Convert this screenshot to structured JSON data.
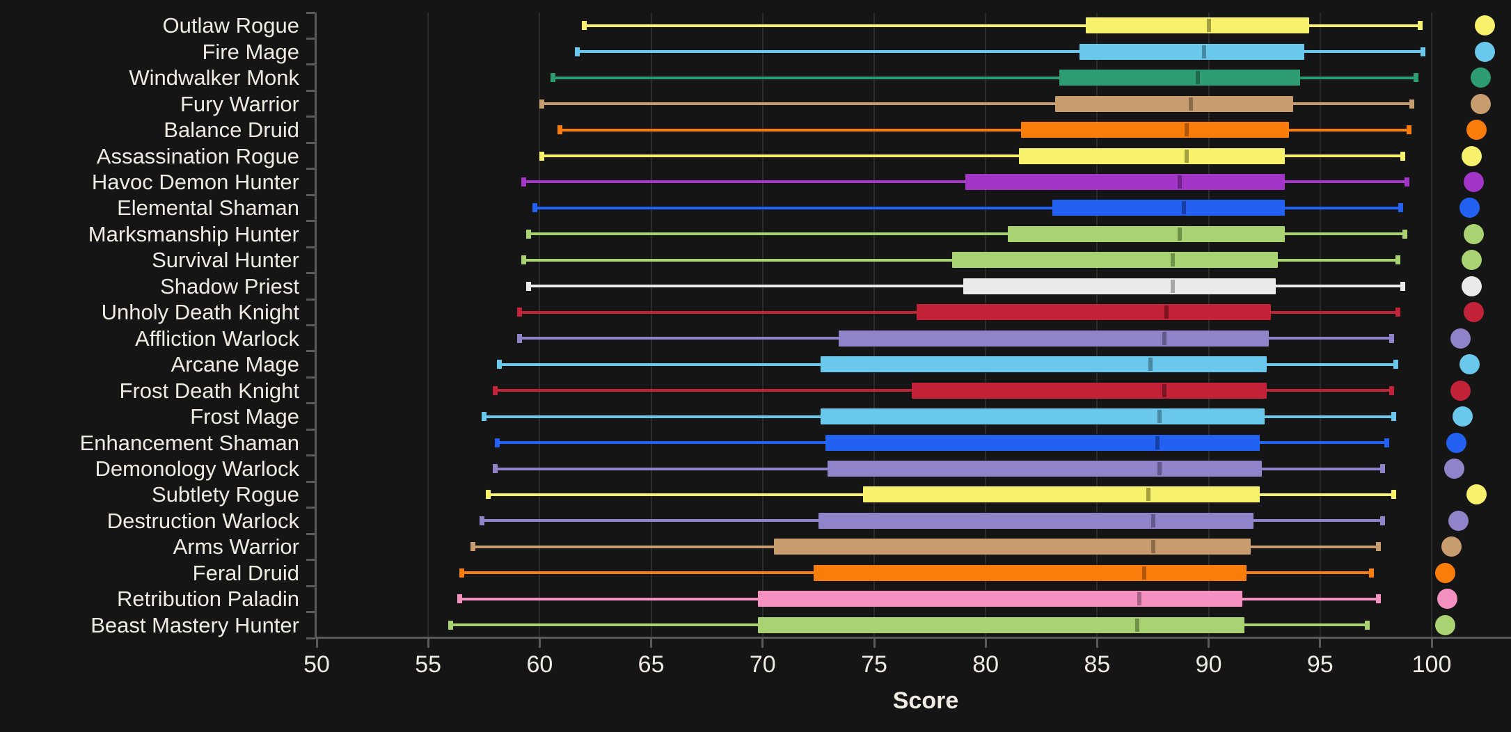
{
  "theme": {
    "background": "#151515",
    "text_color": "#EFEBE2",
    "axis_color": "#5A5A5A",
    "grid_color": "#2C2C2C"
  },
  "chart_data": {
    "type": "box",
    "orientation": "horizontal",
    "title": "",
    "xlabel": "Score",
    "x_ticks": [
      50,
      55,
      60,
      65,
      70,
      75,
      80,
      85,
      90,
      95,
      100
    ],
    "xlim": [
      50,
      103.5
    ],
    "grid": "vertical-only",
    "legend_position": "none",
    "categories": [
      {
        "label": "Outlaw Rogue",
        "color": "#F8F16C",
        "median_color": "#A5A03F",
        "whisker_low": 62.0,
        "q1": 84.5,
        "median": 90.0,
        "q3": 94.5,
        "whisker_high": 99.5,
        "point": 102.4
      },
      {
        "label": "Fire Mage",
        "color": "#6AC8EC",
        "median_color": "#4A89A4",
        "whisker_low": 61.7,
        "q1": 84.2,
        "median": 89.8,
        "q3": 94.3,
        "whisker_high": 99.6,
        "point": 102.4
      },
      {
        "label": "Windwalker Monk",
        "color": "#2E9C72",
        "median_color": "#1F694E",
        "whisker_low": 60.6,
        "q1": 83.3,
        "median": 89.5,
        "q3": 94.1,
        "whisker_high": 99.3,
        "point": 102.2
      },
      {
        "label": "Fury Warrior",
        "color": "#C79C6E",
        "median_color": "#8A6B4A",
        "whisker_low": 60.1,
        "q1": 83.1,
        "median": 89.2,
        "q3": 93.8,
        "whisker_high": 99.1,
        "point": 102.2
      },
      {
        "label": "Balance Druid",
        "color": "#FA7D0C",
        "median_color": "#AF5707",
        "whisker_low": 60.9,
        "q1": 81.6,
        "median": 89.0,
        "q3": 93.6,
        "whisker_high": 99.0,
        "point": 102.0
      },
      {
        "label": "Assassination Rogue",
        "color": "#F8F16C",
        "median_color": "#A5A03F",
        "whisker_low": 60.1,
        "q1": 81.5,
        "median": 89.0,
        "q3": 93.4,
        "whisker_high": 98.7,
        "point": 101.8
      },
      {
        "label": "Havoc Demon Hunter",
        "color": "#A335C8",
        "median_color": "#6F2289",
        "whisker_low": 59.3,
        "q1": 79.1,
        "median": 88.7,
        "q3": 93.4,
        "whisker_high": 98.9,
        "point": 101.9
      },
      {
        "label": "Elemental Shaman",
        "color": "#2361F2",
        "median_color": "#173FA5",
        "whisker_low": 59.8,
        "q1": 83.0,
        "median": 88.9,
        "q3": 93.4,
        "whisker_high": 98.6,
        "point": 101.7
      },
      {
        "label": "Marksmanship Hunter",
        "color": "#A9D372",
        "median_color": "#6F9148",
        "whisker_low": 59.5,
        "q1": 81.0,
        "median": 88.7,
        "q3": 93.4,
        "whisker_high": 98.8,
        "point": 101.9
      },
      {
        "label": "Survival Hunter",
        "color": "#A9D372",
        "median_color": "#6F9148",
        "whisker_low": 59.3,
        "q1": 78.5,
        "median": 88.4,
        "q3": 93.1,
        "whisker_high": 98.5,
        "point": 101.8
      },
      {
        "label": "Shadow Priest",
        "color": "#EAEAEA",
        "median_color": "#A6A6A6",
        "whisker_low": 59.5,
        "q1": 79.0,
        "median": 88.4,
        "q3": 93.0,
        "whisker_high": 98.7,
        "point": 101.8
      },
      {
        "label": "Unholy Death Knight",
        "color": "#C32339",
        "median_color": "#7B1524",
        "whisker_low": 59.1,
        "q1": 76.9,
        "median": 88.1,
        "q3": 92.8,
        "whisker_high": 98.5,
        "point": 101.9
      },
      {
        "label": "Affliction Warlock",
        "color": "#9183C9",
        "median_color": "#63588C",
        "whisker_low": 59.1,
        "q1": 73.4,
        "median": 88.0,
        "q3": 92.7,
        "whisker_high": 98.2,
        "point": 101.3
      },
      {
        "label": "Arcane Mage",
        "color": "#6AC8EC",
        "median_color": "#4A89A4",
        "whisker_low": 58.2,
        "q1": 72.6,
        "median": 87.4,
        "q3": 92.6,
        "whisker_high": 98.4,
        "point": 101.7
      },
      {
        "label": "Frost Death Knight",
        "color": "#C32339",
        "median_color": "#7B1524",
        "whisker_low": 58.0,
        "q1": 76.7,
        "median": 88.0,
        "q3": 92.6,
        "whisker_high": 98.2,
        "point": 101.3
      },
      {
        "label": "Frost Mage",
        "color": "#6AC8EC",
        "median_color": "#4A89A4",
        "whisker_low": 57.5,
        "q1": 72.6,
        "median": 87.8,
        "q3": 92.5,
        "whisker_high": 98.3,
        "point": 101.4
      },
      {
        "label": "Enhancement Shaman",
        "color": "#2361F2",
        "median_color": "#173FA5",
        "whisker_low": 58.1,
        "q1": 72.8,
        "median": 87.7,
        "q3": 92.3,
        "whisker_high": 98.0,
        "point": 101.1
      },
      {
        "label": "Demonology Warlock",
        "color": "#9183C9",
        "median_color": "#63588C",
        "whisker_low": 58.0,
        "q1": 72.9,
        "median": 87.8,
        "q3": 92.4,
        "whisker_high": 97.8,
        "point": 101.0
      },
      {
        "label": "Subtlety Rogue",
        "color": "#F8F16C",
        "median_color": "#A5A03F",
        "whisker_low": 57.7,
        "q1": 74.5,
        "median": 87.3,
        "q3": 92.3,
        "whisker_high": 98.3,
        "point": 102.0
      },
      {
        "label": "Destruction Warlock",
        "color": "#9183C9",
        "median_color": "#63588C",
        "whisker_low": 57.4,
        "q1": 72.5,
        "median": 87.5,
        "q3": 92.0,
        "whisker_high": 97.8,
        "point": 101.2
      },
      {
        "label": "Arms Warrior",
        "color": "#C79C6E",
        "median_color": "#8A6B4A",
        "whisker_low": 57.0,
        "q1": 70.5,
        "median": 87.5,
        "q3": 91.9,
        "whisker_high": 97.6,
        "point": 100.9
      },
      {
        "label": "Feral Druid",
        "color": "#FA7D0C",
        "median_color": "#AF5707",
        "whisker_low": 56.5,
        "q1": 72.3,
        "median": 87.1,
        "q3": 91.7,
        "whisker_high": 97.3,
        "point": 100.6
      },
      {
        "label": "Retribution Paladin",
        "color": "#F491C1",
        "median_color": "#AA6286",
        "whisker_low": 56.4,
        "q1": 69.8,
        "median": 86.9,
        "q3": 91.5,
        "whisker_high": 97.6,
        "point": 100.7
      },
      {
        "label": "Beast Mastery Hunter",
        "color": "#A9D372",
        "median_color": "#6F9148",
        "whisker_low": 56.0,
        "q1": 69.8,
        "median": 86.8,
        "q3": 91.6,
        "whisker_high": 97.1,
        "point": 100.6
      }
    ]
  }
}
